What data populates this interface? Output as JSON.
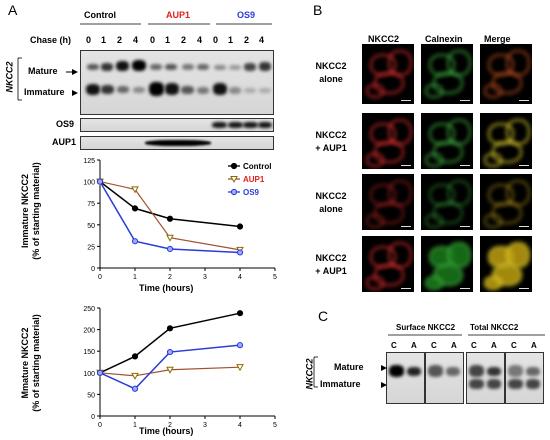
{
  "panels": {
    "a": "A",
    "b": "B",
    "c": "C"
  },
  "colors": {
    "control": "#000000",
    "aup1": "#e0201b",
    "os9": "#2b3bd6"
  },
  "blot_a": {
    "groups": [
      "Control",
      "AUP1",
      "OS9"
    ],
    "chase_label": "Chase (h)",
    "lanes": [
      "0",
      "1",
      "2",
      "4",
      "0",
      "1",
      "2",
      "4",
      "0",
      "1",
      "2",
      "4"
    ],
    "protein": "NKCC2",
    "mature": "Mature",
    "immature": "Immature",
    "os9_row": "OS9",
    "aup1_row": "AUP1"
  },
  "panel_b": {
    "columns": [
      "NKCC2",
      "Calnexin",
      "Merge"
    ],
    "rows": [
      {
        "line1": "NKCC2",
        "line2": "alone"
      },
      {
        "line1": "NKCC2",
        "line2": "+ AUP1"
      },
      {
        "line1": "NKCC2",
        "line2": "alone"
      },
      {
        "line1": "NKCC2",
        "line2": "+ AUP1"
      }
    ]
  },
  "blot_c": {
    "surface": "Surface NKCC2",
    "total": "Total NKCC2",
    "lanes": [
      "C",
      "A",
      "C",
      "A",
      "C",
      "A",
      "C",
      "A"
    ],
    "protein": "NKCC2",
    "mature": "Mature",
    "immature": "Immature"
  },
  "chart_data": [
    {
      "type": "line",
      "ylabel": "Immature NKCC2\n(% of starting material)",
      "ylabel_line1": "Immature NKCC2",
      "ylabel_line2": "(% of starting material)",
      "xlabel": "Time (hours)",
      "xlim": [
        0,
        5
      ],
      "ylim": [
        0,
        125
      ],
      "xticks": [
        0,
        1,
        2,
        3,
        4,
        5
      ],
      "yticks": [
        0,
        25,
        50,
        75,
        100,
        125
      ],
      "legend": "right",
      "series": [
        {
          "name": "Control",
          "x": [
            0,
            1,
            2,
            4
          ],
          "y": [
            100,
            69,
            57,
            48
          ]
        },
        {
          "name": "AUP1",
          "x": [
            0,
            1,
            2,
            4
          ],
          "y": [
            100,
            91,
            35,
            21
          ]
        },
        {
          "name": "OS9",
          "x": [
            0,
            1,
            2,
            4
          ],
          "y": [
            100,
            31,
            22,
            18
          ]
        }
      ]
    },
    {
      "type": "line",
      "ylabel_line1": "Mmature NKCC2",
      "ylabel_line2": "(% of starting material)",
      "xlabel": "Time (hours)",
      "xlim": [
        0,
        5
      ],
      "ylim": [
        0,
        250
      ],
      "xticks": [
        0,
        1,
        2,
        3,
        4,
        5
      ],
      "yticks": [
        0,
        50,
        100,
        150,
        200,
        250
      ],
      "series": [
        {
          "name": "Control",
          "x": [
            0,
            1,
            2,
            4
          ],
          "y": [
            100,
            138,
            203,
            238
          ]
        },
        {
          "name": "AUP1",
          "x": [
            0,
            1,
            2,
            4
          ],
          "y": [
            100,
            93,
            107,
            113
          ]
        },
        {
          "name": "OS9",
          "x": [
            0,
            1,
            2,
            4
          ],
          "y": [
            100,
            63,
            148,
            164
          ]
        }
      ]
    }
  ]
}
